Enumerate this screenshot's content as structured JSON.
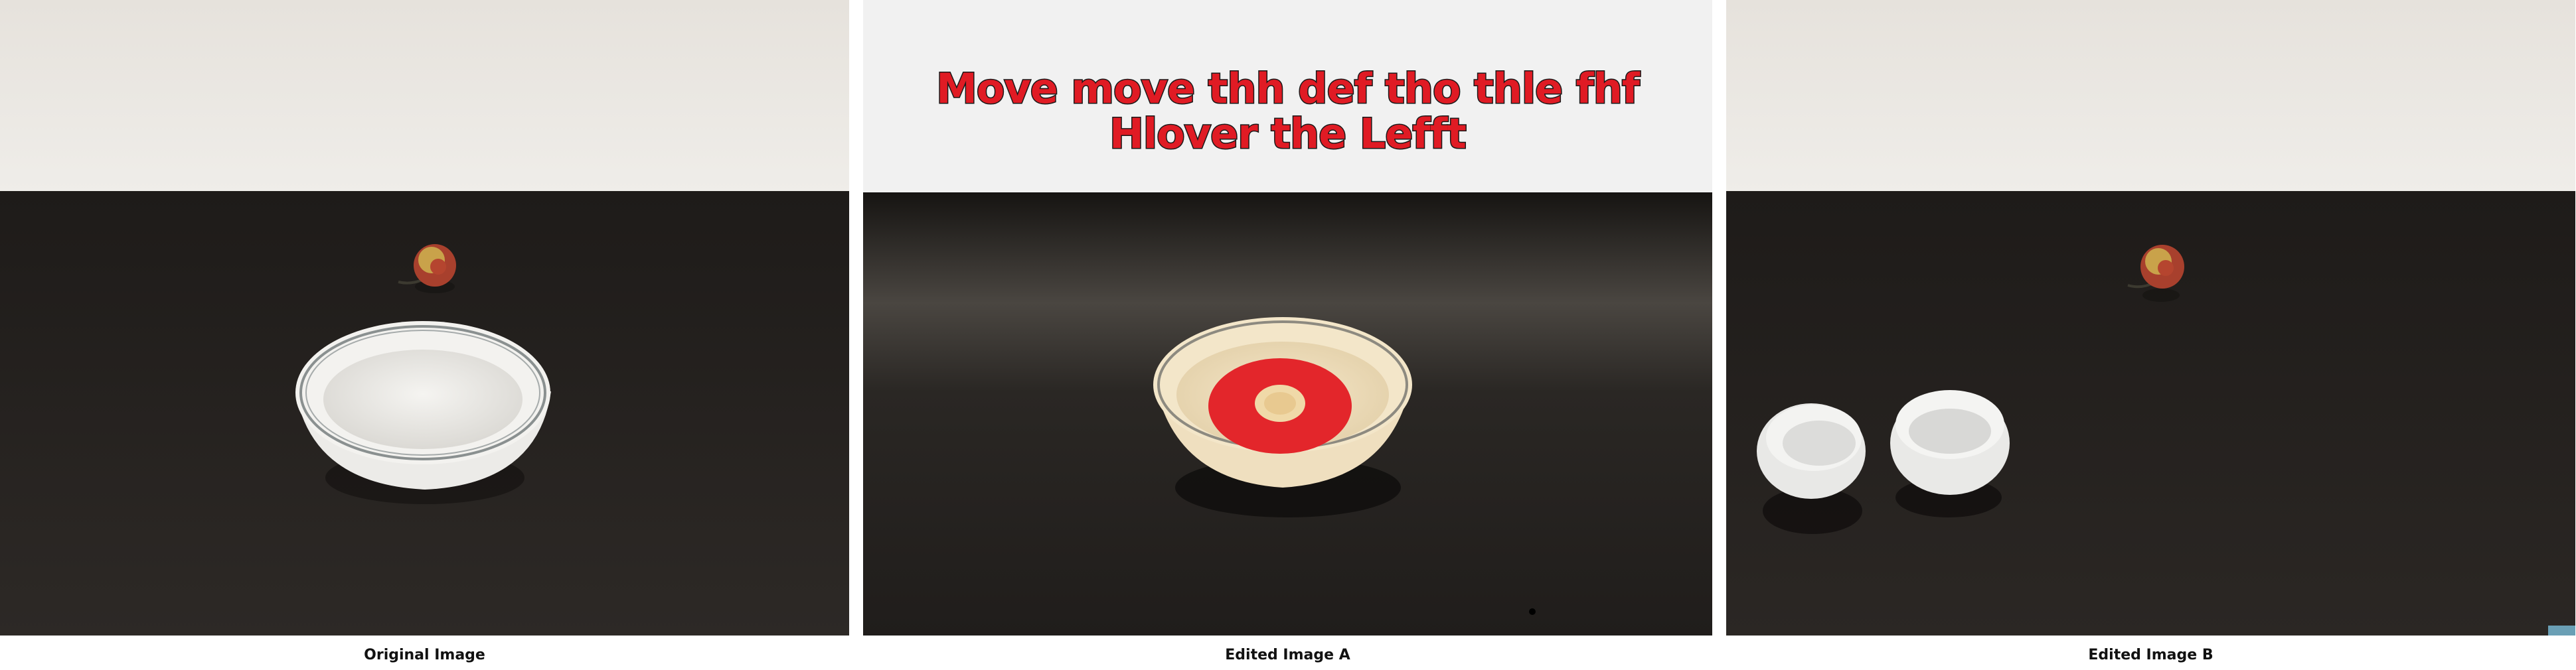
{
  "panels": [
    {
      "caption": "Original Image"
    },
    {
      "caption": "Edited Image A",
      "overlay_text": "Move move thh def tho thle fhf Hlover the Lefft"
    },
    {
      "caption": "Edited Image B"
    }
  ],
  "colors": {
    "wall": "#e9e6e1",
    "table": "#2a2623",
    "bowl": "#f2f1ee",
    "rose": "#b8452f",
    "overlay_red": "#e01b24"
  }
}
